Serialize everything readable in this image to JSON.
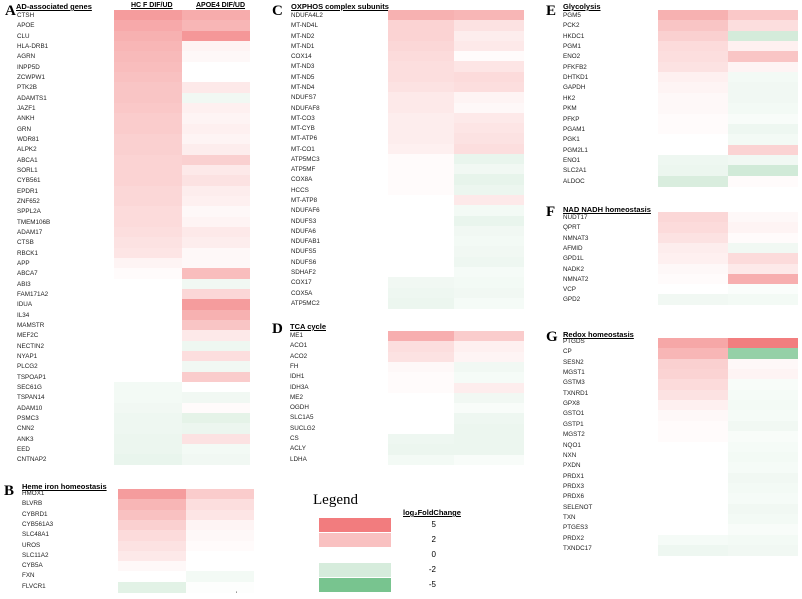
{
  "colors": {
    "up_strong": "#f0696b",
    "up": "#f8b6b6",
    "up_light": "#fde2e3",
    "zero": "#ffffff",
    "down_light": "#cfe9d6",
    "down": "#7fc797",
    "down_strong": "#5bb777"
  },
  "legend": {
    "title": "Legend",
    "subtitle": "log₂FoldChange",
    "entries": [
      {
        "label": "5",
        "value": 5
      },
      {
        "label": "2",
        "value": 2
      },
      {
        "label": "0",
        "value": 0
      },
      {
        "label": "-2",
        "value": -2
      },
      {
        "label": "-5",
        "value": -5
      }
    ]
  },
  "column_headers": {
    "hcf": "HC F DIF/UD",
    "apoe4": "APOE4 DIF/UD"
  },
  "footnote_mark": "'",
  "chart_data": [
    {
      "type": "heatmap",
      "panel": "A",
      "title": "AD-associated genes",
      "columns": [
        "HC F DIF/UD",
        "APOE4 DIF/UD"
      ],
      "rows": [
        "CTSH",
        "APOE",
        "CLU",
        "HLA-DRB1",
        "AGRN",
        "INPP5D",
        "ZCWPW1",
        "PTK2B",
        "ADAMTS1",
        "JAZF1",
        "ANKH",
        "GRN",
        "WDR81",
        "ALPK2",
        "ABCA1",
        "SORL1",
        "CYB561",
        "EPDR1",
        "ZNF652",
        "SPPL2A",
        "TMEM106B",
        "ADAM17",
        "CTSB",
        "RBCK1",
        "APP",
        "ABCA7",
        "ABI3",
        "FAM171A2",
        "IDUA",
        "IL34",
        "MAMSTR",
        "MEF2C",
        "NECTIN2",
        "NYAP1",
        "PLCG2",
        "TSPOAP1",
        "SEC61G",
        "TSPAN14",
        "ADAM10",
        "PSMC3",
        "CNN2",
        "ANK3",
        "EED",
        "CNTNAP2"
      ],
      "values": [
        [
          3,
          2.4
        ],
        [
          2.5,
          2
        ],
        [
          2.2,
          3.2
        ],
        [
          2,
          0.3
        ],
        [
          1.9,
          0.2
        ],
        [
          1.8,
          0
        ],
        [
          1.7,
          0
        ],
        [
          1.6,
          0.6
        ],
        [
          1.6,
          -0.6
        ],
        [
          1.5,
          0.4
        ],
        [
          1.4,
          0.3
        ],
        [
          1.4,
          0.4
        ],
        [
          1.3,
          0.3
        ],
        [
          1.3,
          0.5
        ],
        [
          1.2,
          1.3
        ],
        [
          1.2,
          0.6
        ],
        [
          1.2,
          0.8
        ],
        [
          1.1,
          0.5
        ],
        [
          1.1,
          0.4
        ],
        [
          1.0,
          0.2
        ],
        [
          1.0,
          0.3
        ],
        [
          0.9,
          0.6
        ],
        [
          0.8,
          0.5
        ],
        [
          0.7,
          0.2
        ],
        [
          0.3,
          0.2
        ],
        [
          0.1,
          1.8
        ],
        [
          0,
          -0.6
        ],
        [
          0,
          1.1
        ],
        [
          0,
          3
        ],
        [
          0,
          2.2
        ],
        [
          0,
          1.6
        ],
        [
          0,
          0.6
        ],
        [
          0,
          -0.7
        ],
        [
          0,
          0.9
        ],
        [
          0,
          -0.6
        ],
        [
          0,
          1.4
        ],
        [
          -0.5,
          0
        ],
        [
          -0.5,
          -0.6
        ],
        [
          -0.6,
          0.1
        ],
        [
          -0.7,
          -1.1
        ],
        [
          -0.7,
          -0.8
        ],
        [
          -0.8,
          0.8
        ],
        [
          -0.8,
          -0.5
        ],
        [
          -0.9,
          -0.6
        ]
      ]
    },
    {
      "type": "heatmap",
      "panel": "B",
      "title": "Heme iron homeostasis",
      "columns": [
        "HC F DIF/UD",
        "APOE4 DIF/UD"
      ],
      "rows": [
        "HMOX1",
        "BLVRB",
        "CYBRD1",
        "CYB561A3",
        "SLC48A1",
        "UROS",
        "SLC11A2",
        "CYB5A",
        "FXN",
        "FLVCR1"
      ],
      "values": [
        [
          3,
          1.4
        ],
        [
          2,
          0.9
        ],
        [
          1.7,
          0.7
        ],
        [
          1.3,
          0.3
        ],
        [
          1,
          0.2
        ],
        [
          0.8,
          0.1
        ],
        [
          0.6,
          0
        ],
        [
          0.2,
          0
        ],
        [
          0,
          -0.5
        ],
        [
          -1.2,
          -0.1
        ]
      ]
    },
    {
      "type": "heatmap",
      "panel": "C",
      "title": "OXPHOS complex subunits",
      "columns": [
        "HC F DIF/UD",
        "APOE4 DIF/UD"
      ],
      "rows": [
        "NDUFA4L2",
        "MT-ND4L",
        "MT-ND2",
        "MT-ND1",
        "COX14",
        "MT-ND3",
        "MT-ND5",
        "MT-ND4",
        "NDUFS7",
        "NDUFAF8",
        "MT-CO3",
        "MT-CYB",
        "MT-ATP6",
        "MT-CO1",
        "ATP5MC3",
        "ATP5MF",
        "COX8A",
        "HCCS",
        "MT-ATP8",
        "NDUFAF6",
        "NDUFS3",
        "NDUFA6",
        "NDUFAB1",
        "NDUFS5",
        "NDUFS6",
        "SDHAF2",
        "COX17",
        "COX5A",
        "ATP5MC2"
      ],
      "values": [
        [
          2.2,
          2
        ],
        [
          1.2,
          0.8
        ],
        [
          1.2,
          0.5
        ],
        [
          1.1,
          0.6
        ],
        [
          1,
          0.1
        ],
        [
          0.9,
          0.7
        ],
        [
          0.9,
          1
        ],
        [
          0.8,
          0.9
        ],
        [
          0.6,
          0.3
        ],
        [
          0.6,
          0.2
        ],
        [
          0.5,
          0.6
        ],
        [
          0.5,
          0.7
        ],
        [
          0.5,
          0.8
        ],
        [
          0.4,
          0.9
        ],
        [
          0.1,
          -0.9
        ],
        [
          0.1,
          -0.6
        ],
        [
          0.1,
          -1
        ],
        [
          0.1,
          -0.8
        ],
        [
          0,
          0.6
        ],
        [
          0,
          -0.5
        ],
        [
          0,
          -0.9
        ],
        [
          0,
          -0.6
        ],
        [
          0,
          -0.5
        ],
        [
          0,
          -0.6
        ],
        [
          0,
          -0.7
        ],
        [
          0,
          -0.4
        ],
        [
          -0.6,
          -0.5
        ],
        [
          -0.7,
          -0.6
        ],
        [
          -0.8,
          -0.4
        ]
      ]
    },
    {
      "type": "heatmap",
      "panel": "D",
      "title": "TCA cycle",
      "columns": [
        "HC F DIF/UD",
        "APOE4 DIF/UD"
      ],
      "rows": [
        "ME1",
        "ACO1",
        "ACO2",
        "FH",
        "IDH1",
        "IDH3A",
        "ME2",
        "OGDH",
        "SLC1A5",
        "SUCLG2",
        "CS",
        "ACLY",
        "LDHA"
      ],
      "values": [
        [
          2.3,
          1.4
        ],
        [
          0.9,
          0.4
        ],
        [
          0.8,
          0.3
        ],
        [
          0.2,
          -0.6
        ],
        [
          0.1,
          -0.4
        ],
        [
          0.1,
          0.5
        ],
        [
          0,
          -0.6
        ],
        [
          0,
          -0.3
        ],
        [
          0,
          -0.7
        ],
        [
          0,
          -0.8
        ],
        [
          -0.7,
          -0.8
        ],
        [
          -0.8,
          -0.8
        ],
        [
          -0.5,
          -0.3
        ]
      ]
    },
    {
      "type": "heatmap",
      "panel": "E",
      "title": "Glycolysis",
      "columns": [
        "HC F DIF/UD",
        "APOE4 DIF/UD"
      ],
      "rows": [
        "PGM5",
        "PCK2",
        "HKDC1",
        "PGM1",
        "ENO2",
        "PFKFB2",
        "DHTKD1",
        "GAPDH",
        "HK2",
        "PKM",
        "PFKP",
        "PGAM1",
        "PGK1",
        "PGM2L1",
        "ENO1",
        "SLC2A1",
        "ALDOC"
      ],
      "values": [
        [
          2.2,
          1.5
        ],
        [
          1.6,
          0.9
        ],
        [
          1.3,
          -1.8
        ],
        [
          1.0,
          0.4
        ],
        [
          0.9,
          1.6
        ],
        [
          0.8,
          0.3
        ],
        [
          0.4,
          -0.5
        ],
        [
          0.3,
          -0.6
        ],
        [
          0.2,
          -0.6
        ],
        [
          0.2,
          -0.5
        ],
        [
          0.1,
          -0.3
        ],
        [
          0.1,
          -0.7
        ],
        [
          0,
          -0.5
        ],
        [
          0,
          1.2
        ],
        [
          -0.7,
          -0.6
        ],
        [
          -0.8,
          -1.9
        ],
        [
          -1.6,
          0.1
        ]
      ]
    },
    {
      "type": "heatmap",
      "panel": "F",
      "title": "NAD NADH homeostasis",
      "columns": [
        "HC F DIF/UD",
        "APOE4 DIF/UD"
      ],
      "rows": [
        "NUDT17",
        "QPRT",
        "NMNAT3",
        "AFMID",
        "GPD1L",
        "NADK2",
        "NMNAT2",
        "VCP",
        "GPD2"
      ],
      "values": [
        [
          1.1,
          0.2
        ],
        [
          1.0,
          0.3
        ],
        [
          0.8,
          0.1
        ],
        [
          0.5,
          -0.6
        ],
        [
          0.4,
          1.0
        ],
        [
          0.2,
          0.6
        ],
        [
          0.1,
          2.3
        ],
        [
          0,
          -0.2
        ],
        [
          -0.6,
          -0.5
        ]
      ]
    },
    {
      "type": "heatmap",
      "panel": "G",
      "title": "Redox homeostasis",
      "columns": [
        "HC F DIF/UD",
        "APOE4 DIF/UD"
      ],
      "rows": [
        "PTGDS",
        "CP",
        "SESN2",
        "MGST1",
        "GSTM3",
        "TXNRD1",
        "GPX8",
        "GSTO1",
        "GSTP1",
        "MGST2",
        "NQO1",
        "NXN",
        "PXDN",
        "PRDX1",
        "PRDX3",
        "PRDX6",
        "SELENOT",
        "TXN",
        "PTGES3",
        "PRDX2",
        "TXNDC17"
      ],
      "values": [
        [
          2.6,
          4.2
        ],
        [
          2.0,
          -3.5
        ],
        [
          1.3,
          0.2
        ],
        [
          1.2,
          0.3
        ],
        [
          1.0,
          -0.3
        ],
        [
          0.8,
          -0.4
        ],
        [
          0.4,
          -0.5
        ],
        [
          0.2,
          -0.4
        ],
        [
          0.1,
          -0.6
        ],
        [
          0.1,
          -0.3
        ],
        [
          0,
          -0.4
        ],
        [
          0,
          -0.5
        ],
        [
          0,
          -0.4
        ],
        [
          0,
          -0.6
        ],
        [
          0,
          -0.5
        ],
        [
          0,
          -0.4
        ],
        [
          0,
          -0.6
        ],
        [
          0,
          -0.5
        ],
        [
          0,
          -0.3
        ],
        [
          -0.4,
          -0.5
        ],
        [
          -0.7,
          -0.6
        ]
      ]
    }
  ]
}
